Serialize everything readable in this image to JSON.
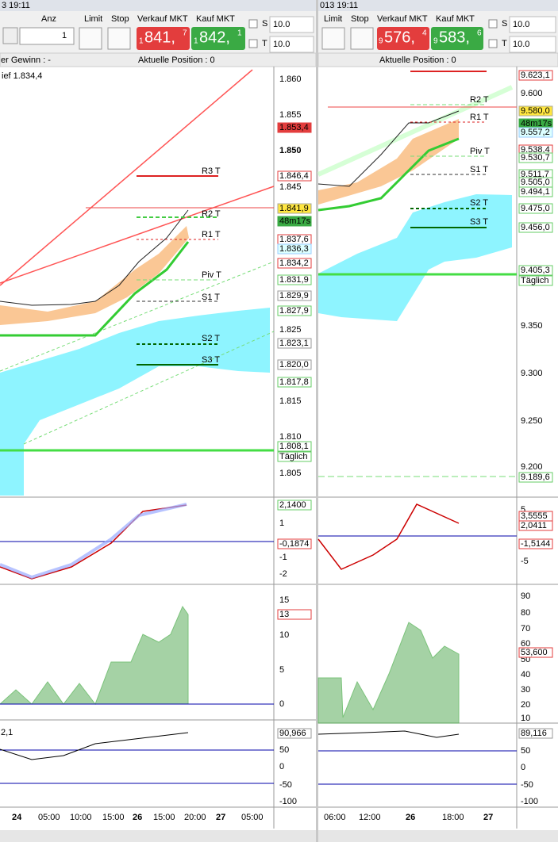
{
  "left": {
    "titlebar": "3 19:11",
    "toolbar": {
      "anz": "Anz",
      "quantity": "1",
      "limit": "Limit",
      "stop": "Stop",
      "sell_label": "Verkauf MKT",
      "sell_price": [
        "1",
        "841,",
        "7"
      ],
      "buy_label": "Kauf MKT",
      "buy_price": [
        "1",
        "842,",
        "1"
      ],
      "s": "S",
      "s_value": "10.0",
      "t": "T",
      "t_value": "10.0"
    },
    "info": {
      "profit": "er Gewinn : -",
      "position": "Aktuelle Position : 0"
    },
    "chart": {
      "note": "ief 1.834,4",
      "axis": [
        "1.860",
        "1.855",
        "1.850",
        "1.845",
        "1.825",
        "1.815",
        "1.810",
        "1.805"
      ],
      "tags": [
        "1.853,4",
        "1.846,4",
        "1.841,9",
        "48m17s",
        "1.837,6",
        "1.836,3",
        "1.834,2",
        "1.831,9",
        "1.829,9",
        "1.827,9",
        "1.823,1",
        "1.820,0",
        "1.817,8",
        "1.808,1",
        "Täglich"
      ],
      "pivots": [
        "R3 T",
        "R2 T",
        "R1 T",
        "Piv T",
        "S1 T",
        "S2 T",
        "S3 T"
      ]
    },
    "macd": {
      "axis": [
        "1",
        "-1",
        "-2"
      ],
      "tags": [
        "2,1400",
        "-0,1874"
      ]
    },
    "osc": {
      "axis": [
        "15",
        "10",
        "5",
        "0"
      ],
      "tags": [
        "13"
      ]
    },
    "lower": {
      "note": "2,1",
      "axis": [
        "50",
        "0",
        "-50",
        "-100"
      ],
      "tags": [
        "90,966"
      ]
    },
    "time_axis": [
      "24",
      "05:00",
      "10:00",
      "15:00",
      "26",
      "15:00",
      "20:00",
      "27",
      "05:00"
    ]
  },
  "right": {
    "titlebar": "013 19:11",
    "toolbar": {
      "limit": "Limit",
      "stop": "Stop",
      "sell_label": "Verkauf MKT",
      "sell_price": [
        "9",
        "576,",
        "4"
      ],
      "buy_label": "Kauf MKT",
      "buy_price": [
        "9",
        "583,",
        "6"
      ],
      "s": "S",
      "s_value": "10.0",
      "t": "T",
      "t_value": "10.0"
    },
    "info": {
      "position": "Aktuelle Position : 0"
    },
    "chart": {
      "axis": [
        "9.600",
        "9.350",
        "9.300",
        "9.250",
        "9.200"
      ],
      "tags": [
        "9.623,1",
        "9.580,0",
        "48m17s",
        "9.557,2",
        "9.538,4",
        "9.530,7",
        "9.511,7",
        "9.505,0",
        "9.494,1",
        "9.475,0",
        "9.456,0",
        "9.405,3",
        "Täglich",
        "9.189,6"
      ],
      "pivots": [
        "R2 T",
        "R1 T",
        "Piv T",
        "S1 T",
        "S2 T",
        "S3 T"
      ]
    },
    "macd": {
      "axis": [
        "5",
        "-5"
      ],
      "tags": [
        "3,5555",
        "2,0411",
        "-1,5144"
      ]
    },
    "osc": {
      "axis": [
        "90",
        "80",
        "70",
        "60",
        "50",
        "40",
        "30",
        "20",
        "10"
      ],
      "tags": [
        "53,600"
      ]
    },
    "lower": {
      "axis": [
        "50",
        "0",
        "-50",
        "-100"
      ],
      "tags": [
        "89,116"
      ]
    },
    "time_axis": [
      "06:00",
      "12:00",
      "26",
      "18:00",
      "27"
    ]
  }
}
